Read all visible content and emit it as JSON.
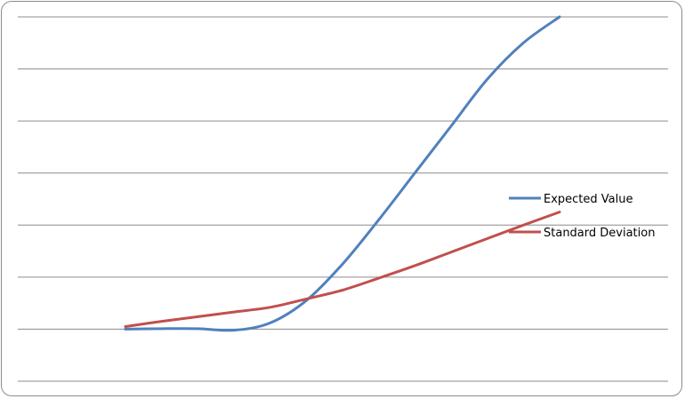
{
  "chart_data": {
    "type": "line",
    "title": "",
    "xlabel": "",
    "ylabel": "",
    "x": [
      0,
      1,
      2,
      3,
      4,
      5,
      6,
      7,
      8,
      9,
      10,
      11,
      12
    ],
    "ylim": [
      -1,
      6
    ],
    "grid": true,
    "legend_position": "right",
    "series": [
      {
        "name": "Expected Value",
        "color": "#4F81BD",
        "values": [
          0,
          0.01,
          0.01,
          -0.02,
          0.12,
          0.55,
          1.25,
          2.1,
          3.0,
          3.9,
          4.8,
          5.5,
          6.0
        ]
      },
      {
        "name": "Standard Deviation",
        "color": "#C0504D",
        "values": [
          0.05,
          0.15,
          0.24,
          0.33,
          0.42,
          0.58,
          0.75,
          0.98,
          1.22,
          1.48,
          1.74,
          2.0,
          2.25
        ]
      }
    ]
  }
}
